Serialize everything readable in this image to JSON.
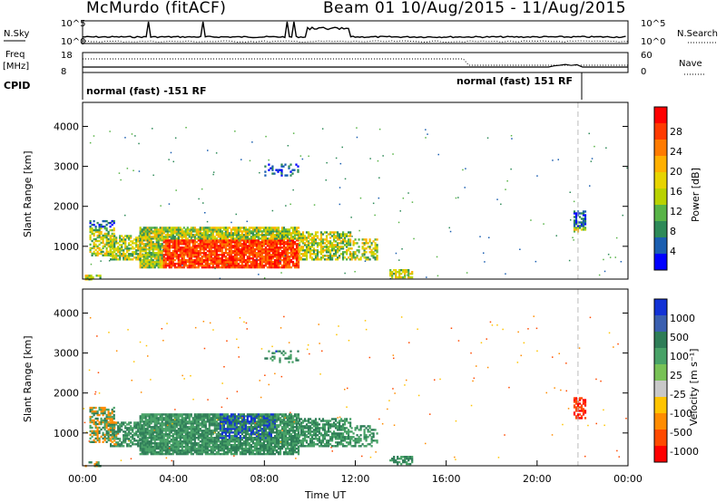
{
  "chart_data": [
    {
      "type": "line",
      "panel": "header",
      "title_left": "McMurdo (fitACF)",
      "title_right": "Beam 01  10/Aug/2015 - 11/Aug/2015",
      "left_label_top": "N.Sky",
      "right_label_top": "N.Search",
      "ticks_left_top": [
        "10^5",
        "10^0"
      ],
      "ticks_right_top": [
        "10^5",
        "10^0"
      ],
      "left_label_freq": [
        "Freq",
        "[MHz]"
      ],
      "right_label_nave": "Nave",
      "ticks_freq": [
        "18",
        "8"
      ],
      "ticks_nave": [
        "60",
        "0"
      ],
      "cpid_label": "CPID",
      "cpid_segments": [
        "normal (fast) -151 RF",
        "normal (fast) 151 RF"
      ],
      "cpid_change_hour": 21.8
    },
    {
      "type": "heatmap",
      "panel": "power",
      "ylabel": "Slant Range [km]",
      "xlim": [
        0,
        24
      ],
      "ylim": [
        180,
        4600
      ],
      "yticks": [
        1000,
        2000,
        3000,
        4000
      ],
      "colorbar_label": "Power [dB]",
      "colorbar_ticks": [
        "28",
        "24",
        "20",
        "16",
        "12",
        "8",
        "4"
      ],
      "colorbar_colors": [
        "#ff0000",
        "#ff3a00",
        "#ff7b00",
        "#ffb000",
        "#e7d400",
        "#b9d200",
        "#58b447",
        "#2d8a58",
        "#1a5eb0",
        "#0000ff"
      ]
    },
    {
      "type": "heatmap",
      "panel": "velocity",
      "ylabel": "Slant Range [km]",
      "xlabel": "Time UT",
      "xlim": [
        0,
        24
      ],
      "ylim": [
        180,
        4600
      ],
      "yticks": [
        1000,
        2000,
        3000,
        4000
      ],
      "xticks": [
        "00:00",
        "04:00",
        "08:00",
        "12:00",
        "16:00",
        "20:00",
        "00:00"
      ],
      "colorbar_label": "Velocity [m s⁻¹]",
      "colorbar_ticks": [
        "1000",
        "500",
        "100",
        "25",
        "-25",
        "-100",
        "-500",
        "-1000"
      ],
      "colorbar_colors": [
        "#1232d6",
        "#3a5fb0",
        "#2e7d57",
        "#48a267",
        "#78c256",
        "#c8c8c8",
        "#ffc400",
        "#ff8c00",
        "#ff4a00",
        "#ff0000"
      ]
    }
  ]
}
